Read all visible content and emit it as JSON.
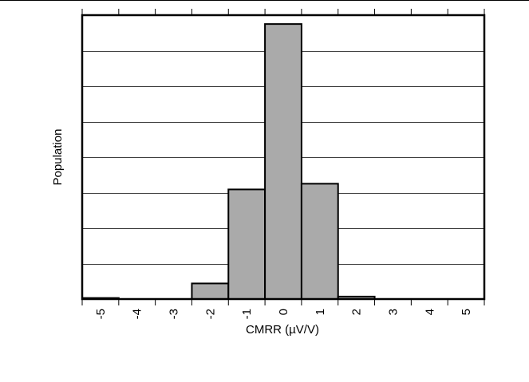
{
  "chart_data": {
    "type": "bar",
    "title": "",
    "xlabel": "CMRR (µV/V)",
    "ylabel": "Population",
    "categories": [
      "-5",
      "-4",
      "-3",
      "-2",
      "-1",
      "0",
      "1",
      "2",
      "3",
      "4",
      "5"
    ],
    "values": [
      0.3,
      0,
      0,
      4.4,
      30.9,
      77.5,
      32.5,
      0.7,
      0,
      0,
      0
    ],
    "xlim": [
      -5.5,
      5.5
    ],
    "ylim": [
      0,
      80
    ],
    "grid": "horizontal",
    "legend": "none",
    "colors": {
      "bar_fill": "#aaaaaa",
      "bar_edge": "#000000",
      "grid": "#000000",
      "frame": "#000000"
    }
  }
}
